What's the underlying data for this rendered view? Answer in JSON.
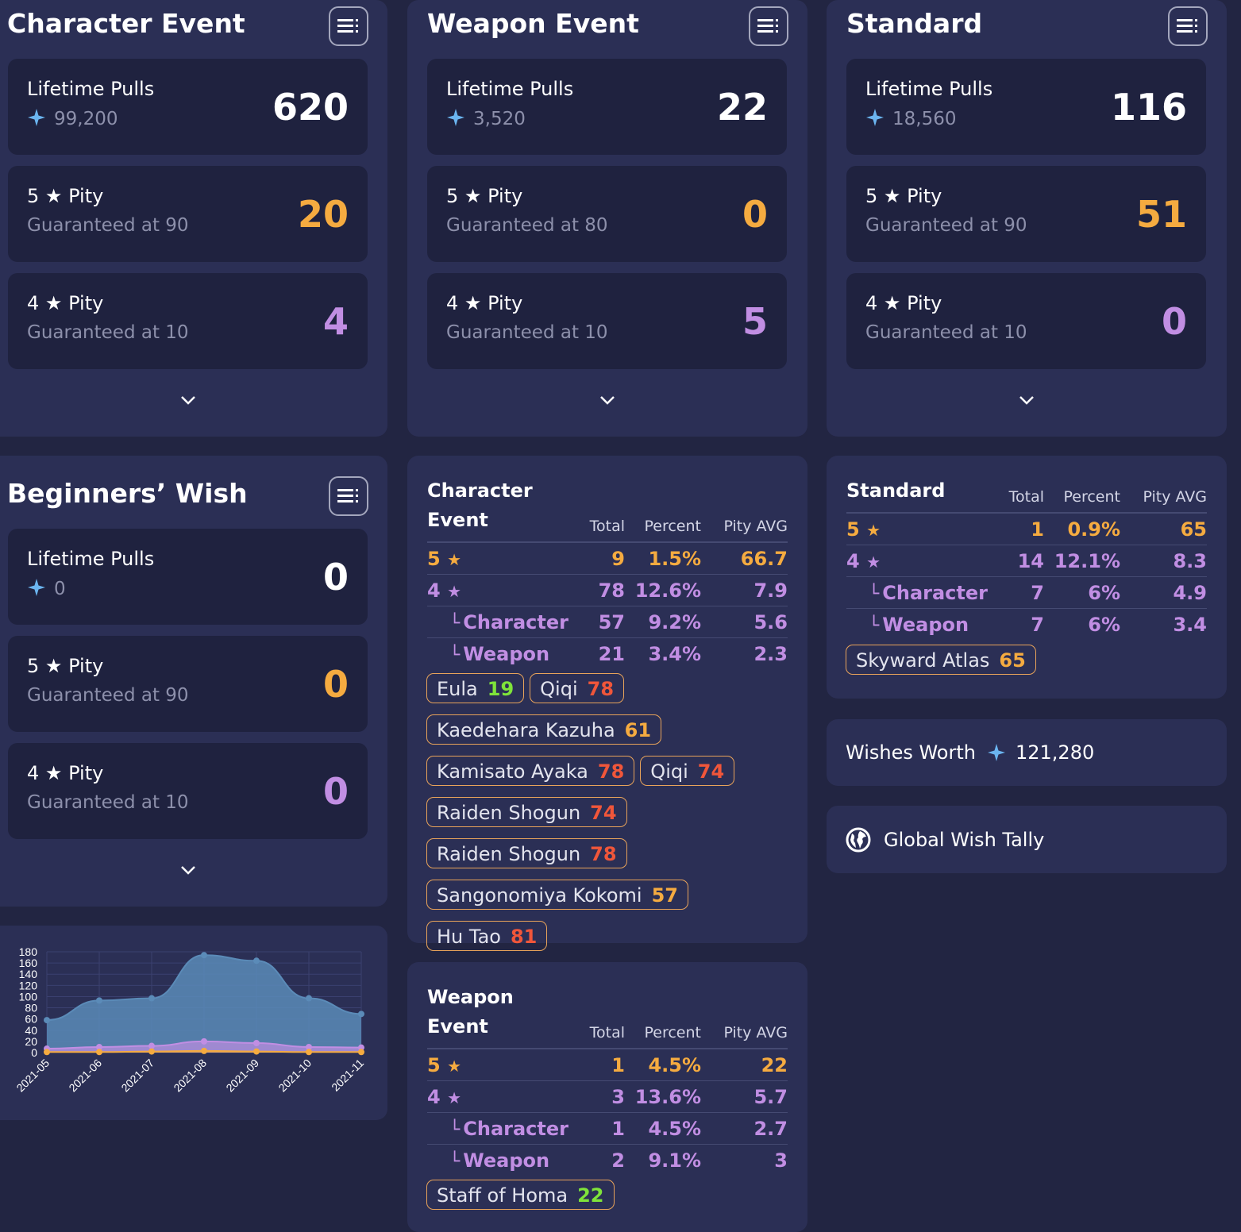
{
  "colors": {
    "gold": "#f5ab40",
    "purple": "#c18ee3",
    "green": "#7fe33a",
    "red": "#f0563a",
    "gem": "#6bb5f0"
  },
  "banners": [
    {
      "title": "Character Event",
      "lifetime_label": "Lifetime Pulls",
      "lifetime_value": "620",
      "gems": "99,200",
      "five_label": "5",
      "pity_word": "Pity",
      "five_guarantee": "Guaranteed at 90",
      "five_value": "20",
      "four_label": "4",
      "four_guarantee": "Guaranteed at 10",
      "four_value": "4"
    },
    {
      "title": "Weapon Event",
      "lifetime_label": "Lifetime Pulls",
      "lifetime_value": "22",
      "gems": "3,520",
      "five_label": "5",
      "pity_word": "Pity",
      "five_guarantee": "Guaranteed at 80",
      "five_value": "0",
      "four_label": "4",
      "four_guarantee": "Guaranteed at 10",
      "four_value": "5"
    },
    {
      "title": "Standard",
      "lifetime_label": "Lifetime Pulls",
      "lifetime_value": "116",
      "gems": "18,560",
      "five_label": "5",
      "pity_word": "Pity",
      "five_guarantee": "Guaranteed at 90",
      "five_value": "51",
      "four_label": "4",
      "four_guarantee": "Guaranteed at 10",
      "four_value": "0"
    },
    {
      "title": "Beginners’ Wish",
      "lifetime_label": "Lifetime Pulls",
      "lifetime_value": "0",
      "gems": "0",
      "five_label": "5",
      "pity_word": "Pity",
      "five_guarantee": "Guaranteed at 90",
      "five_value": "0",
      "four_label": "4",
      "four_guarantee": "Guaranteed at 10",
      "four_value": "0"
    }
  ],
  "tables": {
    "character": {
      "title_line1": "Character",
      "title_line2": "Event",
      "headers": {
        "total": "Total",
        "percent": "Percent",
        "pity": "Pity AVG"
      },
      "rows": [
        {
          "label": "5",
          "total": "9",
          "percent": "1.5%",
          "pity": "66.7"
        },
        {
          "label": "4",
          "total": "78",
          "percent": "12.6%",
          "pity": "7.9"
        },
        {
          "label": "Character",
          "total": "57",
          "percent": "9.2%",
          "pity": "5.6"
        },
        {
          "label": "Weapon",
          "total": "21",
          "percent": "3.4%",
          "pity": "2.3"
        }
      ],
      "tags": [
        {
          "name": "Eula",
          "pity": "19",
          "color": "#7fe33a"
        },
        {
          "name": "Qiqi",
          "pity": "78",
          "color": "#f0563a"
        },
        {
          "name": "Kaedehara Kazuha",
          "pity": "61",
          "color": "#f5ab40"
        },
        {
          "name": "Kamisato Ayaka",
          "pity": "78",
          "color": "#f0563a"
        },
        {
          "name": "Qiqi",
          "pity": "74",
          "color": "#f0563a"
        },
        {
          "name": "Raiden Shogun",
          "pity": "74",
          "color": "#f0563a"
        },
        {
          "name": "Raiden Shogun",
          "pity": "78",
          "color": "#f0563a"
        },
        {
          "name": "Sangonomiya Kokomi",
          "pity": "57",
          "color": "#f5ab40"
        },
        {
          "name": "Hu Tao",
          "pity": "81",
          "color": "#f0563a"
        }
      ]
    },
    "weapon": {
      "title_line1": "Weapon",
      "title_line2": "Event",
      "headers": {
        "total": "Total",
        "percent": "Percent",
        "pity": "Pity AVG"
      },
      "rows": [
        {
          "label": "5",
          "total": "1",
          "percent": "4.5%",
          "pity": "22"
        },
        {
          "label": "4",
          "total": "3",
          "percent": "13.6%",
          "pity": "5.7"
        },
        {
          "label": "Character",
          "total": "1",
          "percent": "4.5%",
          "pity": "2.7"
        },
        {
          "label": "Weapon",
          "total": "2",
          "percent": "9.1%",
          "pity": "3"
        }
      ],
      "tags": [
        {
          "name": "Staff of Homa",
          "pity": "22",
          "color": "#7fe33a"
        }
      ]
    },
    "standard": {
      "title_line1": "Standard",
      "headers": {
        "total": "Total",
        "percent": "Percent",
        "pity": "Pity AVG"
      },
      "rows": [
        {
          "label": "5",
          "total": "1",
          "percent": "0.9%",
          "pity": "65"
        },
        {
          "label": "4",
          "total": "14",
          "percent": "12.1%",
          "pity": "8.3"
        },
        {
          "label": "Character",
          "total": "7",
          "percent": "6%",
          "pity": "4.9"
        },
        {
          "label": "Weapon",
          "total": "7",
          "percent": "6%",
          "pity": "3.4"
        }
      ],
      "tags": [
        {
          "name": "Skyward Atlas",
          "pity": "65",
          "color": "#f5ab40"
        }
      ]
    }
  },
  "wishes_worth": {
    "label": "Wishes Worth",
    "value": "121,280"
  },
  "global_tally": {
    "label": "Global Wish Tally"
  },
  "chart_data": {
    "type": "area",
    "x": [
      "2021-05",
      "2021-06",
      "2021-07",
      "2021-08",
      "2021-09",
      "2021-10",
      "2021-11"
    ],
    "yticks": [
      "0",
      "20",
      "40",
      "60",
      "80",
      "100",
      "120",
      "140",
      "160",
      "180"
    ],
    "ylim": [
      0,
      180
    ],
    "grid": true,
    "series": [
      {
        "values": [
          58,
          93,
          97,
          174,
          164,
          97,
          69
        ],
        "color": "#5b8bb8"
      },
      {
        "values": [
          7,
          10,
          12,
          20,
          17,
          10,
          9
        ],
        "color": "#c18ee3"
      },
      {
        "values": [
          1,
          1,
          2,
          3,
          2,
          1,
          1
        ],
        "color": "#f5ab40"
      }
    ]
  }
}
